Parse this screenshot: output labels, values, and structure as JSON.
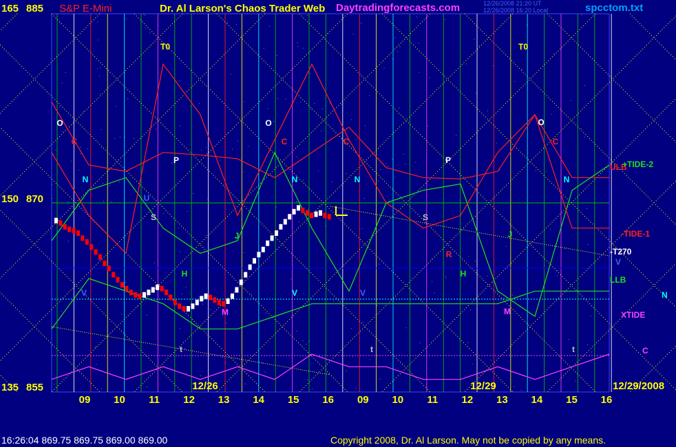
{
  "header": {
    "axis_top_left_a": "165",
    "axis_top_left_b": "885",
    "symbol": "S&P E-Mini",
    "title": "Dr. Al Larson's Chaos Trader Web",
    "site": "Daytradingforecasts.com",
    "stamp_line1": "12/26/2008 21:20 UT",
    "stamp_line2": "12/26/2008 16:20 Local",
    "file": "spcctom.txt"
  },
  "left_scale": [
    {
      "label_a": "165",
      "label_b": "885"
    },
    {
      "label_a": "150",
      "label_b": "870"
    },
    {
      "label_a": "135",
      "label_b": "855"
    }
  ],
  "footer": {
    "quote": "16:26:04  869.75 869.75 869.00 869.00",
    "copyright": "Copyright 2008, Dr. Al Larson. May not be copied by any means."
  },
  "colors": {
    "background": "#000080",
    "grid": "#00c000",
    "price_up": "#ffffff",
    "price_down": "#ff0000",
    "tide_red": "#ff2020",
    "tide_green": "#20e020",
    "xtide": "#ff40ff",
    "yellow": "#ffff00",
    "cyan": "#00ffff",
    "blue_line": "#0000ff"
  },
  "chart_data": {
    "type": "line",
    "title": "S&P E-Mini",
    "ylim": [
      855,
      885
    ],
    "x_hour_labels": [
      "09",
      "10",
      "11",
      "12",
      "13",
      "14",
      "15",
      "16",
      "09",
      "10",
      "11",
      "12",
      "13",
      "14",
      "15",
      "16"
    ],
    "date_labels": [
      "12/26",
      "12/29",
      "12/29/2008"
    ],
    "right_labels": [
      "ULB",
      "+TIDE-2",
      "-TIDE-1",
      "-T270",
      "V",
      "LLB",
      "N",
      "XTIDE",
      "C"
    ],
    "vertical_line_labels": [
      "T0",
      "O",
      "C",
      "P",
      "N",
      "U",
      "S",
      "R",
      "H",
      "J",
      "M",
      "V",
      "t",
      "L"
    ],
    "price_bars": [
      868.6,
      868.4,
      868.1,
      867.9,
      867.8,
      867.6,
      867.2,
      866.9,
      866.5,
      866.1,
      865.7,
      865.2,
      864.8,
      864.3,
      863.9,
      863.5,
      863.2,
      862.9,
      862.7,
      862.6,
      862.7,
      862.9,
      863.1,
      863.3,
      863.2,
      862.9,
      862.5,
      862.1,
      861.8,
      861.6,
      861.6,
      861.8,
      862.1,
      862.4,
      862.6,
      862.5,
      862.3,
      862.1,
      862.0,
      862.2,
      862.6,
      863.1,
      863.7,
      864.3,
      864.9,
      865.4,
      865.9,
      866.3,
      866.8,
      867.2,
      867.6,
      868.1,
      868.5,
      868.9,
      869.3,
      869.6,
      869.4,
      869.2,
      869.0,
      869.1,
      869.2,
      869.0,
      868.9
    ],
    "series": [
      {
        "name": "ULB",
        "values": [
          878,
          873,
          872.5,
          874,
          873.8,
          873.5,
          872,
          874,
          876,
          872.8,
          872,
          871.9,
          872.5,
          877,
          872,
          872
        ]
      },
      {
        "name": "+TIDE-2",
        "values": [
          867,
          871,
          872,
          868,
          866,
          867,
          874,
          868,
          863,
          870,
          871,
          871.5,
          863,
          861,
          871,
          873
        ]
      },
      {
        "name": "-TIDE-1",
        "values": [
          874,
          869,
          866,
          881,
          877,
          869,
          875,
          881,
          875,
          870,
          868,
          869,
          874,
          877,
          868,
          868
        ]
      },
      {
        "name": "LLB",
        "values": [
          860,
          864,
          863,
          862,
          860,
          860,
          861,
          862,
          862,
          862,
          862,
          862,
          862,
          863,
          863,
          863
        ]
      },
      {
        "name": "XTIDE",
        "values": [
          856,
          857,
          856,
          857,
          856,
          857,
          856,
          858,
          857,
          857,
          856,
          856,
          857,
          856,
          857,
          858
        ]
      }
    ]
  }
}
